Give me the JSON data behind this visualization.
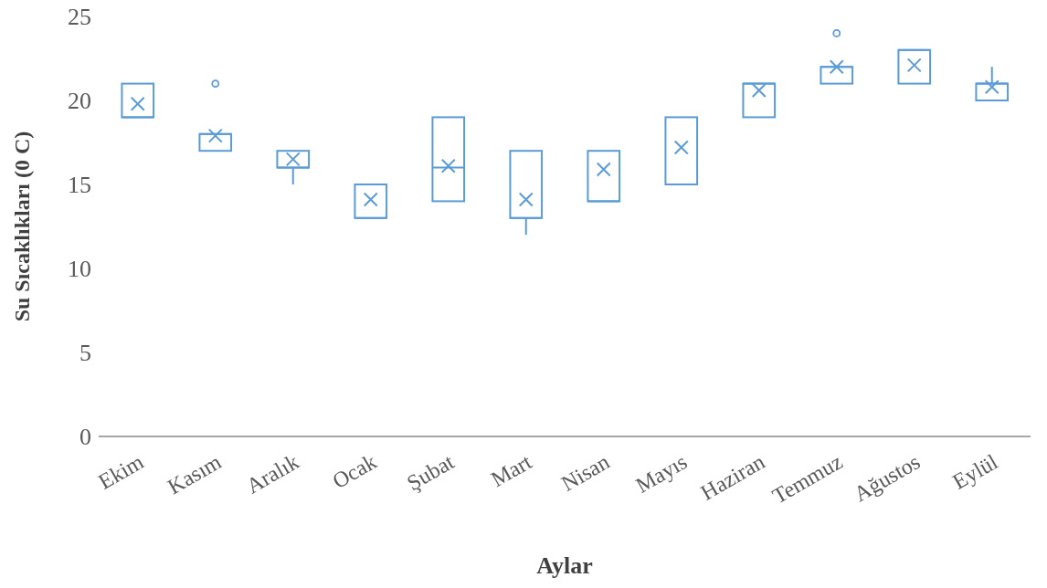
{
  "chart_data": {
    "type": "box",
    "xlabel": "Aylar",
    "ylabel": "Su Sıcaklıkları (0 C)",
    "categories": [
      "Ekim",
      "Kasım",
      "Aralık",
      "Ocak",
      "Şubat",
      "Mart",
      "Nisan",
      "Mayıs",
      "Haziran",
      "Temmuz",
      "Ağustos",
      "Eylül"
    ],
    "color": "#5b9bd5",
    "boxes": [
      {
        "low": 19,
        "q1": 19,
        "median": 19,
        "q3": 21,
        "high": 21,
        "mean": 19.8
      },
      {
        "low": 17,
        "q1": 17,
        "median": 18,
        "q3": 18,
        "high": 18,
        "mean": 17.9,
        "outliers": [
          21
        ]
      },
      {
        "low": 15,
        "q1": 16,
        "median": 16,
        "q3": 17,
        "high": 17,
        "mean": 16.5
      },
      {
        "low": 13,
        "q1": 13,
        "median": 13,
        "q3": 15,
        "high": 15,
        "mean": 14.1
      },
      {
        "low": 14,
        "q1": 14,
        "median": 16,
        "q3": 19,
        "high": 19,
        "mean": 16.1
      },
      {
        "low": 12,
        "q1": 13,
        "median": 13,
        "q3": 17,
        "high": 17,
        "mean": 14.1
      },
      {
        "low": 14,
        "q1": 14,
        "median": 14,
        "q3": 17,
        "high": 17,
        "mean": 15.9
      },
      {
        "low": 15,
        "q1": 15,
        "median": 15,
        "q3": 19,
        "high": 19,
        "mean": 17.2
      },
      {
        "low": 19,
        "q1": 19,
        "median": 21,
        "q3": 21,
        "high": 21,
        "mean": 20.6
      },
      {
        "low": 21,
        "q1": 21,
        "median": 22,
        "q3": 22,
        "high": 22,
        "mean": 22,
        "outliers": [
          24
        ]
      },
      {
        "low": 21,
        "q1": 21,
        "median": 23,
        "q3": 23,
        "high": 23,
        "mean": 22.1
      },
      {
        "low": 20,
        "q1": 20,
        "median": 21,
        "q3": 21,
        "high": 22,
        "mean": 20.8
      }
    ],
    "ylim": [
      0,
      25
    ],
    "yticks": [
      0,
      5,
      10,
      15,
      20,
      25
    ],
    "grid": false,
    "legend": false
  }
}
